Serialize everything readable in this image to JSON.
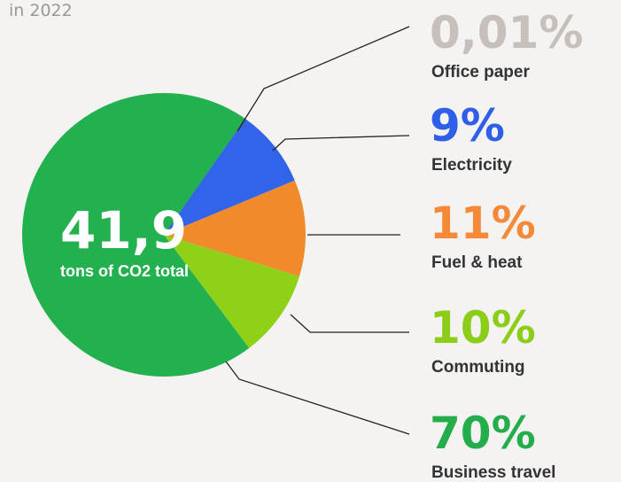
{
  "chart_data": {
    "type": "pie",
    "subtitle": "in 2022",
    "total": {
      "value": 41.9,
      "label": "41,9"
    },
    "total_caption": "tons of CO2 total",
    "categories": [
      "Office paper",
      "Electricity",
      "Fuel & heat",
      "Commuting",
      "Business travel"
    ],
    "values": [
      0.01,
      9,
      11,
      10,
      70
    ],
    "value_labels": [
      "0,01%",
      "9%",
      "11%",
      "10%",
      "70%"
    ],
    "colors": [
      "#b9b2ae",
      "#3264ea",
      "#f08a2a",
      "#8fd118",
      "#23b04f"
    ],
    "label_colors": [
      "#c6bfbb",
      "#2f5ee8",
      "#f5893a",
      "#8ccd1a",
      "#25ad4c"
    ]
  }
}
